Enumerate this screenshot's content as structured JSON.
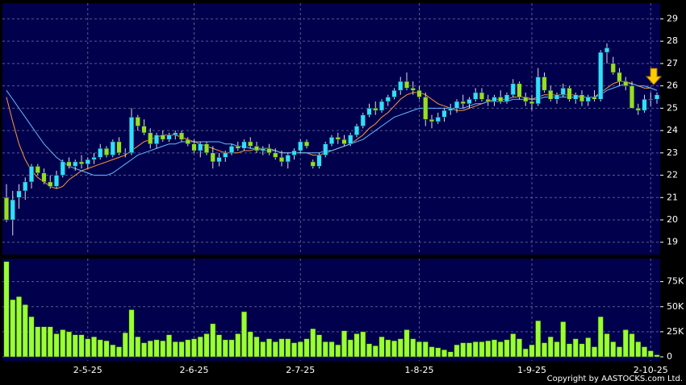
{
  "chart_data": {
    "type": "candlestick",
    "up_color": "#33ddff",
    "down_color": "#99dd22",
    "volume_color": "#99ff33",
    "categories": [
      null,
      null,
      null,
      null,
      null,
      null,
      null,
      null,
      null,
      null,
      null,
      null,
      null,
      "2-5-25",
      null,
      null,
      null,
      null,
      null,
      null,
      null,
      null,
      null,
      null,
      null,
      null,
      null,
      null,
      null,
      null,
      "2-6-25",
      null,
      null,
      null,
      null,
      null,
      null,
      null,
      null,
      null,
      null,
      null,
      null,
      null,
      null,
      null,
      null,
      "2-7-25",
      null,
      null,
      null,
      null,
      null,
      null,
      null,
      null,
      null,
      null,
      null,
      null,
      null,
      null,
      null,
      null,
      null,
      null,
      "1-8-25",
      null,
      null,
      null,
      null,
      null,
      null,
      null,
      null,
      null,
      null,
      null,
      null,
      null,
      null,
      null,
      null,
      null,
      "1-9-25",
      null,
      null,
      null,
      null,
      null,
      null,
      null,
      null,
      null,
      null,
      null,
      null,
      null,
      null,
      null,
      null,
      null,
      null,
      "2-10-25",
      null
    ],
    "candles": [
      [
        21.0,
        21.6,
        19.9,
        20.0
      ],
      [
        20.0,
        21.3,
        19.3,
        20.9
      ],
      [
        21.0,
        21.6,
        20.5,
        21.3
      ],
      [
        21.3,
        21.9,
        20.9,
        21.7
      ],
      [
        21.7,
        22.5,
        21.4,
        22.4
      ],
      [
        22.4,
        22.5,
        22.0,
        22.1
      ],
      [
        22.1,
        22.3,
        21.6,
        21.7
      ],
      [
        21.7,
        22.0,
        21.4,
        21.5
      ],
      [
        21.5,
        22.2,
        21.4,
        22.0
      ],
      [
        22.0,
        22.7,
        21.9,
        22.6
      ],
      [
        22.6,
        22.8,
        22.3,
        22.4
      ],
      [
        22.4,
        22.7,
        22.2,
        22.6
      ],
      [
        22.6,
        22.9,
        22.3,
        22.5
      ],
      [
        22.5,
        22.8,
        22.3,
        22.7
      ],
      [
        22.7,
        23.0,
        22.5,
        22.8
      ],
      [
        22.8,
        23.4,
        22.7,
        23.2
      ],
      [
        23.2,
        23.3,
        22.8,
        22.9
      ],
      [
        22.9,
        23.6,
        22.8,
        23.5
      ],
      [
        23.5,
        23.7,
        22.9,
        23.0
      ],
      [
        23.0,
        23.2,
        22.8,
        23.0
      ],
      [
        23.0,
        25.0,
        22.9,
        24.6
      ],
      [
        24.6,
        24.7,
        24.0,
        24.2
      ],
      [
        24.2,
        24.5,
        23.8,
        23.9
      ],
      [
        23.9,
        24.1,
        23.2,
        23.4
      ],
      [
        23.4,
        23.9,
        23.2,
        23.8
      ],
      [
        23.8,
        24.0,
        23.5,
        23.6
      ],
      [
        23.6,
        23.9,
        23.5,
        23.8
      ],
      [
        23.8,
        24.0,
        23.6,
        23.9
      ],
      [
        23.9,
        24.0,
        23.5,
        23.6
      ],
      [
        23.6,
        23.7,
        23.3,
        23.4
      ],
      [
        23.4,
        23.6,
        23.0,
        23.1
      ],
      [
        23.1,
        23.5,
        22.8,
        23.4
      ],
      [
        23.4,
        23.5,
        22.9,
        23.0
      ],
      [
        23.0,
        23.3,
        22.3,
        22.6
      ],
      [
        22.6,
        23.0,
        22.4,
        22.8
      ],
      [
        22.8,
        23.1,
        22.6,
        23.0
      ],
      [
        23.0,
        23.4,
        22.9,
        23.3
      ],
      [
        23.3,
        23.5,
        23.1,
        23.2
      ],
      [
        23.2,
        23.6,
        23.1,
        23.5
      ],
      [
        23.5,
        23.7,
        23.2,
        23.3
      ],
      [
        23.3,
        23.5,
        23.0,
        23.1
      ],
      [
        23.1,
        23.3,
        22.9,
        23.2
      ],
      [
        23.2,
        23.4,
        22.9,
        23.0
      ],
      [
        23.0,
        23.2,
        22.7,
        22.8
      ],
      [
        22.8,
        23.1,
        22.4,
        22.6
      ],
      [
        22.6,
        23.0,
        22.3,
        22.9
      ],
      [
        22.9,
        23.2,
        22.7,
        23.1
      ],
      [
        23.1,
        23.6,
        23.0,
        23.5
      ],
      [
        23.5,
        23.6,
        23.2,
        23.3
      ],
      [
        22.6,
        22.7,
        22.3,
        22.4
      ],
      [
        22.4,
        23.0,
        22.3,
        22.9
      ],
      [
        22.9,
        23.5,
        22.8,
        23.4
      ],
      [
        23.4,
        23.8,
        23.3,
        23.7
      ],
      [
        23.7,
        23.9,
        23.4,
        23.6
      ],
      [
        23.6,
        23.8,
        23.3,
        23.4
      ],
      [
        23.4,
        23.9,
        23.3,
        23.8
      ],
      [
        23.8,
        24.3,
        23.7,
        24.2
      ],
      [
        24.2,
        24.8,
        24.1,
        24.7
      ],
      [
        24.7,
        25.2,
        24.6,
        25.0
      ],
      [
        25.0,
        25.3,
        24.7,
        24.9
      ],
      [
        24.9,
        25.4,
        24.8,
        25.3
      ],
      [
        25.3,
        25.6,
        25.1,
        25.5
      ],
      [
        25.5,
        25.9,
        25.4,
        25.8
      ],
      [
        25.8,
        26.4,
        25.6,
        26.2
      ],
      [
        26.2,
        26.6,
        25.8,
        25.9
      ],
      [
        25.9,
        26.2,
        25.6,
        25.8
      ],
      [
        25.8,
        26.0,
        25.4,
        25.5
      ],
      [
        25.5,
        25.7,
        24.2,
        24.5
      ],
      [
        24.5,
        24.7,
        24.1,
        24.4
      ],
      [
        24.4,
        24.8,
        24.3,
        24.6
      ],
      [
        24.6,
        25.0,
        24.4,
        24.9
      ],
      [
        24.9,
        25.2,
        24.7,
        25.0
      ],
      [
        25.0,
        25.4,
        24.8,
        25.3
      ],
      [
        25.3,
        25.6,
        25.0,
        25.2
      ],
      [
        25.2,
        25.5,
        25.0,
        25.4
      ],
      [
        25.4,
        25.9,
        25.3,
        25.7
      ],
      [
        25.7,
        25.9,
        25.3,
        25.4
      ],
      [
        25.4,
        25.6,
        25.1,
        25.3
      ],
      [
        25.3,
        25.6,
        25.1,
        25.5
      ],
      [
        25.5,
        25.8,
        25.2,
        25.3
      ],
      [
        25.3,
        25.7,
        25.2,
        25.6
      ],
      [
        25.6,
        26.3,
        25.5,
        26.1
      ],
      [
        26.1,
        26.2,
        25.4,
        25.5
      ],
      [
        25.5,
        25.7,
        25.1,
        25.3
      ],
      [
        25.3,
        25.6,
        24.9,
        25.2
      ],
      [
        25.2,
        26.8,
        25.1,
        26.4
      ],
      [
        26.4,
        26.6,
        25.7,
        25.8
      ],
      [
        25.8,
        26.0,
        25.3,
        25.4
      ],
      [
        25.4,
        25.7,
        25.2,
        25.6
      ],
      [
        25.6,
        26.1,
        25.5,
        25.9
      ],
      [
        25.9,
        26.0,
        25.3,
        25.4
      ],
      [
        25.4,
        25.7,
        25.2,
        25.6
      ],
      [
        25.6,
        25.8,
        25.1,
        25.3
      ],
      [
        25.3,
        25.6,
        25.1,
        25.5
      ],
      [
        25.5,
        25.8,
        25.3,
        25.4
      ],
      [
        25.4,
        27.6,
        25.3,
        27.5
      ],
      [
        27.5,
        27.9,
        27.0,
        27.7
      ],
      [
        27.0,
        27.3,
        26.5,
        26.6
      ],
      [
        26.6,
        26.8,
        26.0,
        26.2
      ],
      [
        26.2,
        26.4,
        25.8,
        26.0
      ],
      [
        26.0,
        26.2,
        25.0,
        25.0
      ],
      [
        25.0,
        25.2,
        24.7,
        24.9
      ],
      [
        24.9,
        25.6,
        24.8,
        25.4
      ],
      [
        25.4,
        25.7,
        25.1,
        25.4
      ],
      [
        25.4,
        25.7,
        25.2,
        25.6
      ]
    ],
    "series": [
      {
        "color": "#ff9933",
        "values": [
          25.5,
          24.4,
          23.4,
          22.7,
          22.2,
          21.9,
          21.7,
          21.5,
          21.4,
          21.5,
          21.8,
          22.0,
          22.2,
          22.3,
          22.4,
          22.5,
          22.6,
          22.7,
          22.8,
          22.9,
          23.1,
          23.3,
          23.5,
          23.6,
          23.7,
          23.8,
          23.8,
          23.8,
          23.7,
          23.6,
          23.5,
          23.4,
          23.3,
          23.2,
          23.1,
          23.0,
          23.0,
          23.0,
          23.1,
          23.1,
          23.2,
          23.2,
          23.2,
          23.1,
          23.0,
          23.0,
          23.0,
          23.0,
          23.0,
          22.9,
          22.9,
          23.0,
          23.1,
          23.2,
          23.3,
          23.4,
          23.6,
          23.8,
          24.1,
          24.3,
          24.6,
          24.8,
          25.1,
          25.4,
          25.6,
          25.7,
          25.7,
          25.6,
          25.4,
          25.2,
          25.1,
          25.0,
          24.9,
          24.9,
          25.0,
          25.1,
          25.2,
          25.3,
          25.4,
          25.4,
          25.4,
          25.5,
          25.5,
          25.5,
          25.4,
          25.5,
          25.6,
          25.6,
          25.6,
          25.6,
          25.6,
          25.6,
          25.5,
          25.5,
          25.5,
          25.7,
          25.9,
          26.1,
          26.2,
          26.2,
          26.1,
          26.0,
          25.9,
          25.9,
          25.8
        ]
      },
      {
        "color": "#66bbff",
        "values": [
          25.8,
          25.4,
          25.0,
          24.6,
          24.2,
          23.8,
          23.4,
          23.1,
          22.8,
          22.6,
          22.4,
          22.3,
          22.2,
          22.1,
          22.0,
          22.0,
          22.0,
          22.1,
          22.3,
          22.5,
          22.7,
          22.9,
          23.0,
          23.1,
          23.2,
          23.3,
          23.4,
          23.4,
          23.5,
          23.5,
          23.5,
          23.5,
          23.5,
          23.5,
          23.5,
          23.4,
          23.4,
          23.3,
          23.3,
          23.2,
          23.2,
          23.1,
          23.1,
          23.1,
          23.0,
          23.0,
          23.0,
          23.0,
          23.0,
          23.0,
          23.0,
          23.1,
          23.1,
          23.2,
          23.3,
          23.4,
          23.5,
          23.6,
          23.8,
          24.0,
          24.2,
          24.4,
          24.6,
          24.7,
          24.8,
          24.9,
          25.0,
          25.0,
          25.0,
          25.0,
          25.0,
          25.0,
          25.0,
          25.0,
          25.1,
          25.2,
          25.2,
          25.3,
          25.3,
          25.3,
          25.3,
          25.4,
          25.4,
          25.4,
          25.4,
          25.4,
          25.5,
          25.5,
          25.5,
          25.5,
          25.5,
          25.5,
          25.5,
          25.5,
          25.5,
          25.6,
          25.8,
          25.9,
          26.0,
          26.1,
          26.1,
          26.0,
          26.0,
          25.9,
          25.8
        ]
      }
    ],
    "volume": [
      95000,
      57000,
      60000,
      52000,
      40000,
      30000,
      30000,
      30000,
      23000,
      27000,
      25000,
      22000,
      22000,
      18000,
      20000,
      17000,
      16000,
      12000,
      10000,
      24000,
      47000,
      20000,
      14000,
      16000,
      17000,
      16000,
      22000,
      15000,
      15000,
      17000,
      18000,
      20000,
      23000,
      33000,
      22000,
      17000,
      17000,
      23000,
      45000,
      25000,
      20000,
      15000,
      18000,
      15000,
      18000,
      18000,
      14000,
      15000,
      18000,
      28000,
      22000,
      15000,
      15000,
      12000,
      26000,
      17000,
      23000,
      25000,
      13000,
      11000,
      20000,
      17000,
      16000,
      18000,
      27000,
      18000,
      15000,
      15000,
      10000,
      9000,
      7000,
      5000,
      12000,
      14000,
      14000,
      15000,
      15000,
      16000,
      17000,
      15000,
      17000,
      23000,
      18000,
      8000,
      12000,
      36000,
      14000,
      20000,
      15000,
      35000,
      13000,
      18000,
      13000,
      19000,
      10000,
      40000,
      23000,
      15000,
      10000,
      27000,
      23000,
      15000,
      10000,
      6000,
      2000
    ],
    "ylim": [
      18.45,
      29.7
    ],
    "yticks": [
      19,
      20,
      21,
      22,
      23,
      24,
      25,
      26,
      27,
      28,
      29
    ],
    "y2lim": [
      -4000,
      98000
    ],
    "y2ticks": [
      0,
      {
        "value": 25000,
        "label": "25K"
      },
      {
        "value": 50000,
        "label": "50K"
      },
      {
        "value": 75000,
        "label": "75K"
      }
    ],
    "grid": true,
    "copyright": "Copyright by AASTOCKS.com Ltd."
  }
}
